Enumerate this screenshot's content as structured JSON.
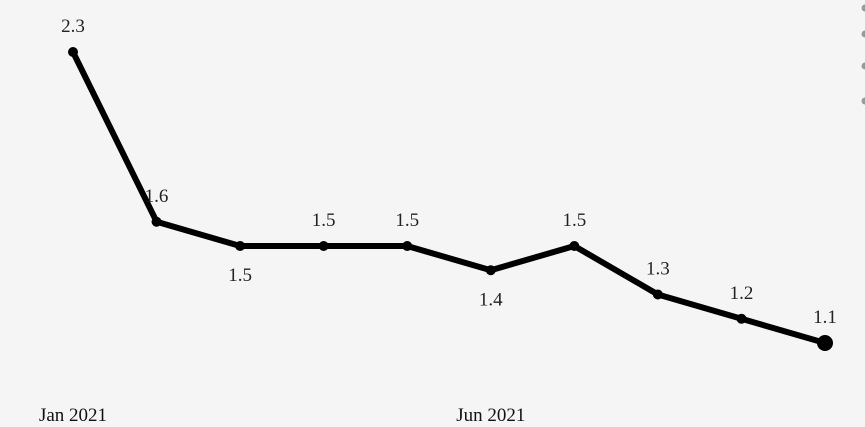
{
  "chart_data": {
    "type": "line",
    "title": "",
    "xlabel": "",
    "ylabel": "",
    "grid": false,
    "x": [
      "2021-01",
      "2021-02",
      "2021-03",
      "2021-04",
      "2021-05",
      "2021-06",
      "2021-07",
      "2021-08",
      "2021-09",
      "2021-10"
    ],
    "x_tick_labels": [
      {
        "x": "2021-01",
        "label": "Jan 2021"
      },
      {
        "x": "2021-06",
        "label": "Jun 2021"
      }
    ],
    "series": [
      {
        "values": [
          2.3,
          1.6,
          1.5,
          1.5,
          1.5,
          1.4,
          1.5,
          1.3,
          1.2,
          1.1
        ],
        "data_labels": [
          "2.3",
          "1.6",
          "1.5",
          "1.5",
          "1.5",
          "1.4",
          "1.5",
          "1.3",
          "1.2",
          "1.1"
        ],
        "color": "#000000"
      }
    ],
    "ylim": [
      0.7,
      2.6
    ],
    "legend": "top-right, partially visible"
  }
}
